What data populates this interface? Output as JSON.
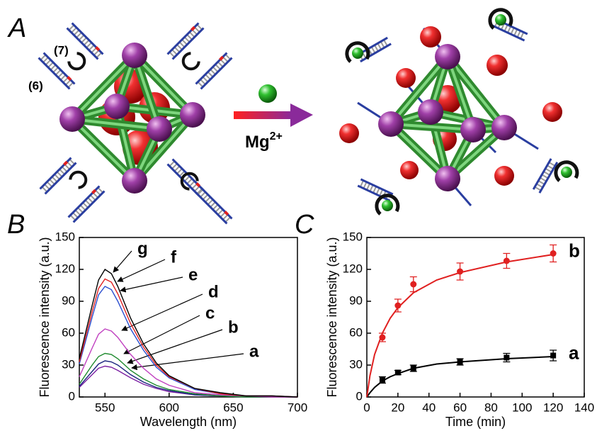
{
  "diagram": {
    "panel_label": "A",
    "strand_labels": [
      "(7)",
      "(6)"
    ],
    "ion": "Mg",
    "ion_charge": "2+"
  },
  "chart_data": [
    {
      "type": "line",
      "panel_label": "B",
      "x_label": "Wavelength (nm)",
      "y_label": "Fluorescence intensity (a.u.)",
      "x": [
        530,
        540,
        545,
        550,
        555,
        560,
        570,
        580,
        590,
        600,
        620,
        640,
        660,
        680,
        700
      ],
      "xlim": [
        530,
        700
      ],
      "xticks": [
        550,
        600,
        650,
        700
      ],
      "ylim": [
        0,
        150
      ],
      "yticks": [
        0,
        30,
        60,
        90,
        120,
        150
      ],
      "series": [
        {
          "name": "a",
          "color": "#7a1fa2",
          "values": [
            9,
            21,
            27,
            29,
            28,
            25,
            18,
            12,
            8,
            5,
            2,
            1,
            0,
            0,
            0
          ]
        },
        {
          "name": "b",
          "color": "#1a237e",
          "values": [
            10,
            24,
            31,
            34,
            33,
            30,
            21,
            14,
            9,
            6,
            2,
            1,
            0,
            0,
            0
          ]
        },
        {
          "name": "c",
          "color": "#1e8a2e",
          "values": [
            12,
            30,
            38,
            41,
            40,
            36,
            25,
            17,
            11,
            7,
            3,
            1,
            0,
            0,
            0
          ]
        },
        {
          "name": "d",
          "color": "#c040c0",
          "values": [
            19,
            46,
            59,
            64,
            62,
            56,
            40,
            27,
            17,
            11,
            4,
            2,
            1,
            0,
            0
          ]
        },
        {
          "name": "e",
          "color": "#2a4fd0",
          "values": [
            31,
            75,
            96,
            104,
            101,
            90,
            64,
            44,
            28,
            18,
            7,
            3,
            1,
            1,
            0
          ]
        },
        {
          "name": "f",
          "color": "#e02020",
          "values": [
            33,
            80,
            102,
            111,
            108,
            97,
            69,
            47,
            30,
            19,
            8,
            3,
            1,
            1,
            0
          ]
        },
        {
          "name": "g",
          "color": "#000000",
          "values": [
            36,
            86,
            110,
            120,
            116,
            104,
            74,
            50,
            32,
            20,
            8,
            4,
            1,
            1,
            0
          ]
        }
      ]
    },
    {
      "type": "scatter",
      "panel_label": "C",
      "x_label": "Time (min)",
      "y_label": "Fluorescence intensity (a.u.)",
      "x": [
        10,
        20,
        30,
        60,
        90,
        120
      ],
      "xlim": [
        0,
        140
      ],
      "xticks": [
        0,
        20,
        40,
        60,
        80,
        100,
        120,
        140
      ],
      "ylim": [
        0,
        150
      ],
      "yticks": [
        0,
        30,
        60,
        90,
        120,
        150
      ],
      "series": [
        {
          "name": "a",
          "color": "#000000",
          "marker": "square",
          "values": [
            16,
            23,
            27,
            33,
            37,
            39
          ],
          "errors": [
            3,
            2,
            3,
            3,
            4,
            5
          ],
          "fit": {
            "x": [
              0,
              2,
              5,
              10,
              15,
              20,
              30,
              45,
              60,
              90,
              120
            ],
            "values": [
              0,
              4,
              9,
              15,
              19,
              22,
              27,
              31,
              33,
              36,
              38
            ]
          }
        },
        {
          "name": "b",
          "color": "#e02020",
          "marker": "circle",
          "values": [
            56,
            86,
            106,
            118,
            128,
            135
          ],
          "errors": [
            4,
            6,
            7,
            8,
            7,
            8
          ],
          "fit": {
            "x": [
              0,
              2,
              5,
              10,
              15,
              20,
              30,
              45,
              60,
              90,
              120
            ],
            "values": [
              0,
              20,
              40,
              60,
              74,
              84,
              98,
              110,
              117,
              127,
              134
            ]
          }
        }
      ]
    }
  ]
}
